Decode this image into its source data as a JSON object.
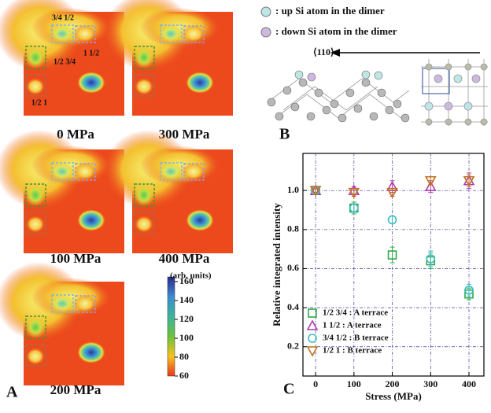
{
  "panel_a": {
    "label": "A",
    "images": [
      {
        "caption": "0 MPa",
        "spot_labels": [
          "3/4 1/2",
          "1  1/2",
          "1/2 3/4",
          "1/2  1"
        ]
      },
      {
        "caption": "300 MPa"
      },
      {
        "caption": "100 MPa"
      },
      {
        "caption": "400 MPa"
      },
      {
        "caption": "200 MPa"
      }
    ],
    "colorbar": {
      "title": "(arb. units)",
      "ticks": [
        160,
        140,
        120,
        100,
        80,
        60
      ],
      "range": [
        60,
        165
      ]
    }
  },
  "panel_b": {
    "label": "B",
    "legend": [
      {
        "text": ": up Si atom in the dimer",
        "color": "#bfe6e6"
      },
      {
        "text": ": down Si atom in the dimer",
        "color": "#cdb8e0"
      }
    ],
    "direction": "⟨110⟩"
  },
  "chart_data": {
    "type": "scatter",
    "label": "C",
    "xlabel": "Stress  (MPa)",
    "ylabel": "Relative integrated intensity",
    "xlim": [
      -33,
      439
    ],
    "ylim": [
      0.05,
      1.19
    ],
    "xticks": [
      0,
      100,
      200,
      300,
      400
    ],
    "yticks": [
      {
        "value": 0.2,
        "label": "0.2"
      },
      {
        "value": 0.4,
        "label": "0.4"
      },
      {
        "value": 0.6,
        "label": "0.6"
      },
      {
        "value": 0.8,
        "label": "0.8"
      },
      {
        "value": 1.0,
        "label": "1.0"
      }
    ],
    "grid": true,
    "legend_position": "lower-left",
    "x": [
      0,
      100,
      200,
      300,
      400
    ],
    "series": [
      {
        "name": "1/2 3/4 : A terrace",
        "color": "#2ea84a",
        "marker": "square",
        "values": [
          1.0,
          0.91,
          0.67,
          0.64,
          0.47
        ],
        "errors": [
          0.01,
          0.03,
          0.04,
          0.04,
          0.03
        ]
      },
      {
        "name": "1   1/2 : A terrace",
        "color": "#b03cb0",
        "marker": "triangle",
        "values": [
          1.0,
          1.0,
          1.02,
          1.02,
          1.05
        ],
        "errors": [
          0.01,
          0.02,
          0.03,
          0.03,
          0.04
        ]
      },
      {
        "name": "3/4 1/2 : B terrace",
        "color": "#3cbcc4",
        "marker": "circle",
        "values": [
          1.0,
          0.91,
          0.85,
          0.65,
          0.49
        ],
        "errors": [
          0.01,
          0.02,
          0.02,
          0.04,
          0.03
        ]
      },
      {
        "name": "1/2   1 : B terrace",
        "color": "#c0701c",
        "marker": "triangle-down",
        "values": [
          1.0,
          0.99,
          0.99,
          1.05,
          1.05
        ],
        "errors": [
          0.01,
          0.02,
          0.02,
          0.02,
          0.03
        ]
      }
    ]
  }
}
